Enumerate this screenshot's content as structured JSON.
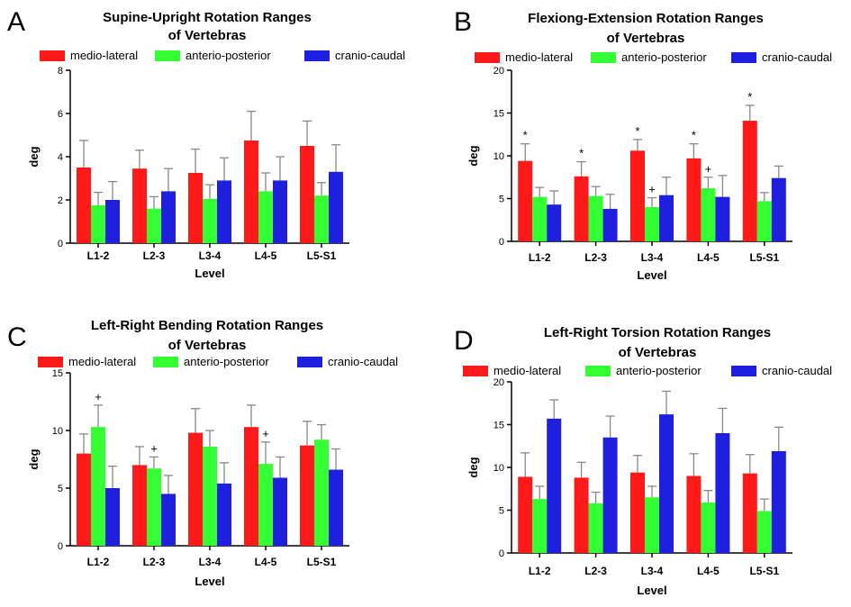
{
  "figure": {
    "legend_names": [
      "medio-lateral",
      "anterio-posterior",
      "cranio-caudal"
    ]
  },
  "colors": {
    "medio-lateral": "#ff1a1a",
    "anterio-posterior": "#33ff33",
    "cranio-caudal": "#1f1fe0"
  },
  "chart_data": [
    {
      "panel": "A",
      "type": "bar",
      "title": [
        "Supine-Upright Rotation Ranges",
        "of Vertebras"
      ],
      "xlabel": "Level",
      "ylabel": "deg",
      "ylim": [
        0,
        8
      ],
      "yticks": [
        0,
        2,
        4,
        6,
        8
      ],
      "categories": [
        "L1-2",
        "L2-3",
        "L3-4",
        "L4-5",
        "L5-S1"
      ],
      "series": [
        {
          "name": "medio-lateral",
          "values": [
            3.5,
            3.45,
            3.25,
            4.75,
            4.5
          ],
          "errors": [
            1.25,
            0.85,
            1.1,
            1.35,
            1.15
          ]
        },
        {
          "name": "anterio-posterior",
          "values": [
            1.75,
            1.6,
            2.05,
            2.4,
            2.2
          ],
          "errors": [
            0.6,
            0.55,
            0.65,
            0.85,
            0.6
          ]
        },
        {
          "name": "cranio-caudal",
          "values": [
            2.0,
            2.4,
            2.9,
            2.9,
            3.3
          ],
          "errors": [
            0.85,
            1.05,
            1.05,
            1.1,
            1.25
          ]
        }
      ],
      "annotations": []
    },
    {
      "panel": "B",
      "type": "bar",
      "title": [
        "Flexiong-Extension Rotation Ranges",
        "of Vertebras"
      ],
      "xlabel": "Level",
      "ylabel": "deg",
      "ylim": [
        0,
        20
      ],
      "yticks": [
        0,
        5,
        10,
        15,
        20
      ],
      "categories": [
        "L1-2",
        "L2-3",
        "L3-4",
        "L4-5",
        "L5-S1"
      ],
      "series": [
        {
          "name": "medio-lateral",
          "values": [
            9.4,
            7.6,
            10.6,
            9.7,
            14.1
          ],
          "errors": [
            2.0,
            1.7,
            1.3,
            1.7,
            1.8
          ]
        },
        {
          "name": "anterio-posterior",
          "values": [
            5.2,
            5.3,
            4.0,
            6.2,
            4.7
          ],
          "errors": [
            1.1,
            1.1,
            1.1,
            1.3,
            1.0
          ]
        },
        {
          "name": "cranio-caudal",
          "values": [
            4.3,
            3.8,
            5.4,
            5.2,
            7.4
          ],
          "errors": [
            1.6,
            1.7,
            2.1,
            2.5,
            1.4
          ]
        }
      ],
      "annotations": [
        {
          "text": "*",
          "category": 0,
          "series": 0
        },
        {
          "text": "*",
          "category": 1,
          "series": 0
        },
        {
          "text": "*",
          "category": 2,
          "series": 0
        },
        {
          "text": "*",
          "category": 3,
          "series": 0
        },
        {
          "text": "*",
          "category": 4,
          "series": 0
        },
        {
          "text": "+",
          "category": 2,
          "series": 1
        },
        {
          "text": "+",
          "category": 3,
          "series": 1
        }
      ]
    },
    {
      "panel": "C",
      "type": "bar",
      "title": [
        "Left-Right Bending Rotation Ranges",
        "of Vertebras"
      ],
      "xlabel": "Level",
      "ylabel": "deg",
      "ylim": [
        0,
        15
      ],
      "yticks": [
        0,
        5,
        10,
        15
      ],
      "categories": [
        "L1-2",
        "L2-3",
        "L3-4",
        "L4-5",
        "L5-S1"
      ],
      "series": [
        {
          "name": "medio-lateral",
          "values": [
            8.0,
            7.0,
            9.8,
            10.3,
            8.7
          ],
          "errors": [
            1.7,
            1.6,
            2.1,
            1.9,
            2.1
          ]
        },
        {
          "name": "anterio-posterior",
          "values": [
            10.3,
            6.7,
            8.6,
            7.1,
            9.2
          ],
          "errors": [
            1.9,
            1.0,
            1.4,
            1.9,
            1.3
          ]
        },
        {
          "name": "cranio-caudal",
          "values": [
            5.0,
            4.5,
            5.4,
            5.9,
            6.6
          ],
          "errors": [
            1.9,
            1.6,
            1.8,
            1.8,
            1.8
          ]
        }
      ],
      "annotations": [
        {
          "text": "+",
          "category": 0,
          "series": 1
        },
        {
          "text": "+",
          "category": 1,
          "series": 1
        },
        {
          "text": "+",
          "category": 3,
          "series": 1
        }
      ]
    },
    {
      "panel": "D",
      "type": "bar",
      "title": [
        "Left-Right Torsion Rotation Ranges",
        "of Vertebras"
      ],
      "xlabel": "Level",
      "ylabel": "deg",
      "ylim": [
        0,
        20
      ],
      "yticks": [
        0,
        5,
        10,
        15,
        20
      ],
      "categories": [
        "L1-2",
        "L2-3",
        "L3-4",
        "L4-5",
        "L5-S1"
      ],
      "series": [
        {
          "name": "medio-lateral",
          "values": [
            8.9,
            8.8,
            9.4,
            9.0,
            9.3
          ],
          "errors": [
            2.8,
            1.8,
            2.0,
            2.6,
            2.2
          ]
        },
        {
          "name": "anterio-posterior",
          "values": [
            6.3,
            5.8,
            6.5,
            5.9,
            4.9
          ],
          "errors": [
            1.5,
            1.3,
            1.3,
            1.4,
            1.4
          ]
        },
        {
          "name": "cranio-caudal",
          "values": [
            15.7,
            13.5,
            16.2,
            14.0,
            11.9
          ],
          "errors": [
            2.2,
            2.5,
            2.7,
            2.9,
            2.8
          ]
        }
      ],
      "annotations": []
    }
  ]
}
